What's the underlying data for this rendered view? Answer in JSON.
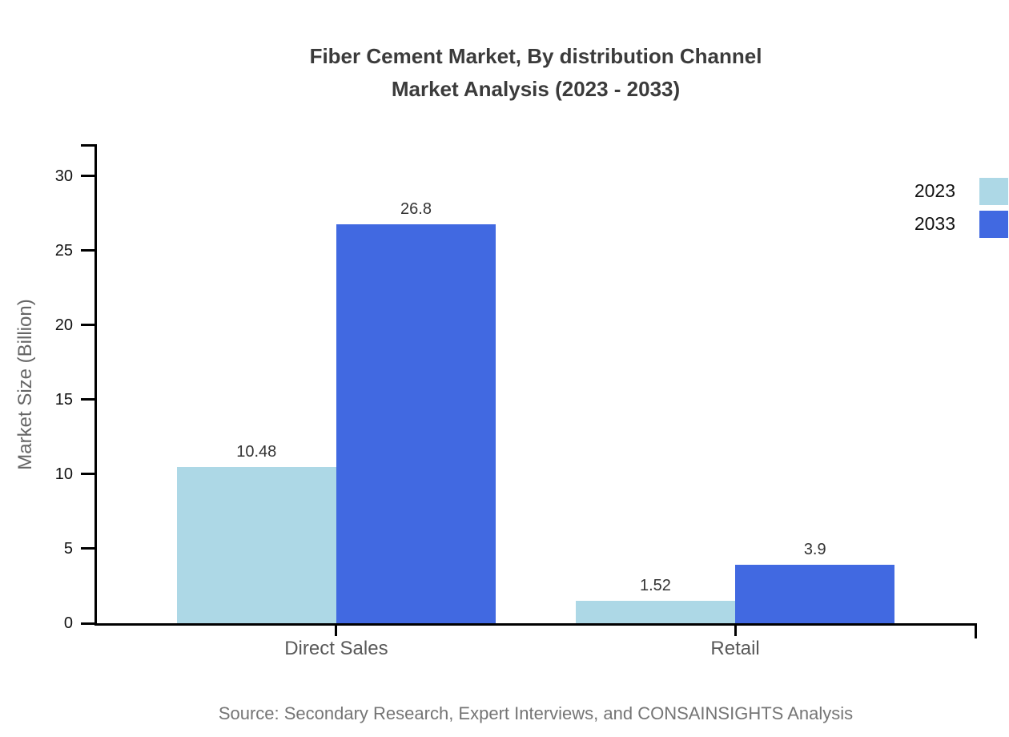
{
  "title": {
    "line1": "Fiber Cement Market, By distribution Channel",
    "line2": "Market Analysis (2023 - 2033)"
  },
  "source": "Source: Secondary Research, Expert Interviews, and CONSAINSIGHTS Analysis",
  "chart_data": {
    "type": "bar",
    "title": "Fiber Cement Market, By distribution Channel Market Analysis (2023 - 2033)",
    "categories": [
      "Direct Sales",
      "Retail"
    ],
    "series": [
      {
        "name": "2023",
        "color": "#ADD8E6",
        "values": [
          10.48,
          1.52
        ]
      },
      {
        "name": "2033",
        "color": "#4169E1",
        "values": [
          26.8,
          3.9
        ]
      }
    ],
    "value_labels": [
      [
        "10.48",
        "1.52"
      ],
      [
        "26.8",
        "3.9"
      ]
    ],
    "xlabel": "",
    "ylabel": "Market Size (Billion)",
    "yticks": [
      0,
      5,
      10,
      15,
      20,
      25,
      30
    ],
    "ylim": [
      0,
      32.15
    ],
    "grid": false,
    "legend_position": "top-right-outside"
  }
}
